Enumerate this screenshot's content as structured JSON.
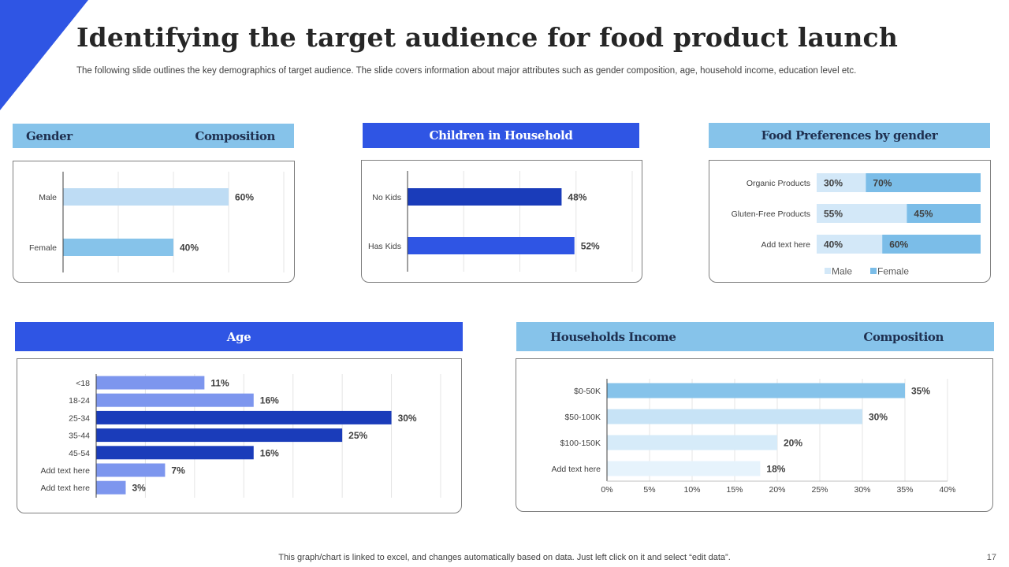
{
  "slide": {
    "title": "Identifying the target audience for food product launch",
    "subtitle": "The following slide outlines the key demographics of target audience. The slide covers information about major attributes such as gender composition, age, household income, education level etc.",
    "footer": "This graph/chart is linked to excel,  and changes automatically based on data. Just left click on it and select “edit data”.",
    "page_number": "17",
    "accent_color": "#2f55e4"
  },
  "headers": {
    "gender": {
      "left": "Gender",
      "right": "Composition"
    },
    "children": "Children in Household",
    "food": "Food Preferences by gender",
    "age": "Age",
    "income": {
      "left": "Households Income",
      "right": "Composition"
    }
  },
  "chart_data": [
    {
      "id": "gender",
      "type": "bar",
      "orientation": "horizontal",
      "categories": [
        "Male",
        "Female"
      ],
      "values": [
        60,
        40
      ],
      "labels": [
        "60%",
        "40%"
      ],
      "colors": [
        "#bedcf4",
        "#86c3ea"
      ],
      "xlim": [
        0,
        80
      ]
    },
    {
      "id": "children",
      "type": "bar",
      "orientation": "horizontal",
      "categories": [
        "No Kids",
        "Has Kids"
      ],
      "values": [
        48,
        52
      ],
      "labels": [
        "48%",
        "52%"
      ],
      "colors": [
        "#1a3cba",
        "#2f55e4"
      ],
      "xlim": [
        0,
        70
      ]
    },
    {
      "id": "food",
      "type": "bar",
      "stacked": true,
      "orientation": "horizontal",
      "categories": [
        "Organic Products",
        "Gluten-Free Products",
        "Add text here"
      ],
      "series": [
        {
          "name": "Male",
          "values": [
            30,
            55,
            40
          ],
          "labels": [
            "30%",
            "55%",
            "40%"
          ],
          "color": "#d3e8f8"
        },
        {
          "name": "Female",
          "values": [
            70,
            45,
            60
          ],
          "labels": [
            "70%",
            "45%",
            "60%"
          ],
          "color": "#7bbde8"
        }
      ],
      "legend": "bottom"
    },
    {
      "id": "age",
      "type": "bar",
      "orientation": "horizontal",
      "categories": [
        "<18",
        "18-24",
        "25-34",
        "35-44",
        "45-54",
        "Add text here",
        "Add text here"
      ],
      "values": [
        11,
        16,
        30,
        25,
        16,
        7,
        3
      ],
      "labels": [
        "11%",
        "16%",
        "30%",
        "25%",
        "16%",
        "7%",
        "3%"
      ],
      "colors": [
        "#7d96ee",
        "#7d96ee",
        "#1a3cba",
        "#1a3cba",
        "#1a3cba",
        "#7d96ee",
        "#7d96ee"
      ],
      "xlim": [
        0,
        35
      ]
    },
    {
      "id": "income",
      "type": "bar",
      "orientation": "horizontal",
      "categories": [
        "$0-50K",
        "$50-100K",
        "$100-150K",
        "Add text here"
      ],
      "values": [
        35,
        30,
        20,
        18
      ],
      "labels": [
        "35%",
        "30%",
        "20%",
        "18%"
      ],
      "colors": [
        "#86c3ea",
        "#c7e3f6",
        "#d6ebf9",
        "#e6f3fc"
      ],
      "xlim": [
        0,
        40
      ],
      "xticks": [
        "0%",
        "5%",
        "10%",
        "15%",
        "20%",
        "25%",
        "30%",
        "35%",
        "40%"
      ]
    }
  ]
}
